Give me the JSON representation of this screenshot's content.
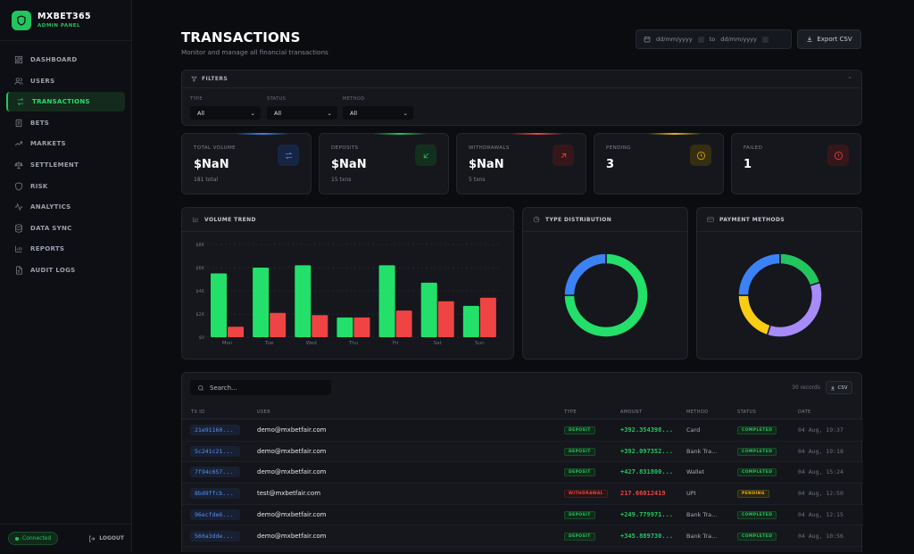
{
  "brand": {
    "name": "MXBET365",
    "subtitle": "ADMIN PANEL"
  },
  "nav": [
    {
      "label": "DASHBOARD",
      "icon": "grid-icon"
    },
    {
      "label": "USERS",
      "icon": "users-icon"
    },
    {
      "label": "TRANSACTIONS",
      "icon": "arrows-icon",
      "active": true
    },
    {
      "label": "BETS",
      "icon": "receipt-icon"
    },
    {
      "label": "MARKETS",
      "icon": "trend-icon"
    },
    {
      "label": "SETTLEMENT",
      "icon": "scale-icon"
    },
    {
      "label": "RISK",
      "icon": "shield-icon"
    },
    {
      "label": "ANALYTICS",
      "icon": "activity-icon"
    },
    {
      "label": "DATA SYNC",
      "icon": "database-icon"
    },
    {
      "label": "REPORTS",
      "icon": "bar-chart-icon"
    },
    {
      "label": "AUDIT LOGS",
      "icon": "file-icon"
    }
  ],
  "footer": {
    "connected": "Connected",
    "logout": "LOGOUT"
  },
  "header": {
    "title": "TRANSACTIONS",
    "subtitle": "Monitor and manage all financial transactions",
    "date_from_placeholder": "dd/mm/yyyy",
    "date_to_label": "to",
    "date_to_placeholder": "dd/mm/yyyy",
    "export_label": "Export CSV"
  },
  "filters": {
    "title": "FILTERS",
    "groups": [
      {
        "label": "TYPE",
        "value": "All"
      },
      {
        "label": "STATUS",
        "value": "All"
      },
      {
        "label": "METHOD",
        "value": "All"
      }
    ]
  },
  "stats": [
    {
      "label": "TOTAL VOLUME",
      "value": "$NaN",
      "sub": "181 total",
      "color": "#3b82f6",
      "icon": "swap-icon"
    },
    {
      "label": "DEPOSITS",
      "value": "$NaN",
      "sub": "15 txns",
      "color": "#22c55e",
      "icon": "arrow-down-left-icon"
    },
    {
      "label": "WITHDRAWALS",
      "value": "$NaN",
      "sub": "5 txns",
      "color": "#ef4444",
      "icon": "arrow-up-right-icon"
    },
    {
      "label": "PENDING",
      "value": "3",
      "sub": "",
      "color": "#eab308",
      "icon": "clock-icon"
    },
    {
      "label": "FAILED",
      "value": "1",
      "sub": "",
      "color": "#ef4444",
      "icon": "alert-circle-icon"
    }
  ],
  "volume_panel_title": "VOLUME TREND",
  "type_panel_title": "TYPE DISTRIBUTION",
  "payment_panel_title": "PAYMENT METHODS",
  "chart_data": [
    {
      "type": "bar",
      "title": "VOLUME TREND",
      "categories": [
        "Mon",
        "Tue",
        "Wed",
        "Thu",
        "Fri",
        "Sat",
        "Sun"
      ],
      "y_ticks": [
        "$0",
        "$2K",
        "$4K",
        "$6K",
        "$8K"
      ],
      "ylim": [
        0,
        8000
      ],
      "series": [
        {
          "color": "#22e06a",
          "values": [
            5500,
            6000,
            6200,
            1700,
            6200,
            4700,
            2700
          ]
        },
        {
          "color": "#ef4444",
          "values": [
            900,
            2100,
            1900,
            1700,
            2300,
            3100,
            3400
          ]
        }
      ]
    },
    {
      "type": "pie",
      "title": "TYPE DISTRIBUTION",
      "values": [
        75,
        25
      ],
      "colors": [
        "#22e06a",
        "#3b82f6"
      ]
    },
    {
      "type": "pie",
      "title": "PAYMENT METHODS",
      "values": [
        20,
        35,
        20,
        25
      ],
      "colors": [
        "#22c55e",
        "#a78bfa",
        "#facc15",
        "#3b82f6"
      ]
    }
  ],
  "table": {
    "search_placeholder": "Search...",
    "records": "30 records",
    "csv_label": "CSV",
    "headers": [
      "TX ID",
      "USER",
      "TYPE",
      "AMOUNT",
      "METHOD",
      "STATUS",
      "DATE"
    ],
    "rows": [
      {
        "id": "21e91160...",
        "user": "demo@mxbetfair.com",
        "type": "DEPOSIT",
        "amount": "+392.354398...",
        "method": "Card",
        "status": "COMPLETED",
        "date": "04 Aug, 19:37"
      },
      {
        "id": "5c241c21...",
        "user": "demo@mxbetfair.com",
        "type": "DEPOSIT",
        "amount": "+392.097352...",
        "method": "Bank Tra...",
        "status": "COMPLETED",
        "date": "04 Aug, 19:18"
      },
      {
        "id": "7f94c657...",
        "user": "demo@mxbetfair.com",
        "type": "DEPOSIT",
        "amount": "+427.831800...",
        "method": "Wallet",
        "status": "COMPLETED",
        "date": "04 Aug, 15:24"
      },
      {
        "id": "8bd9ffcb...",
        "user": "test@mxbetfair.com",
        "type": "WITHDRAWAL",
        "amount": "217.66012419",
        "method": "UPI",
        "status": "PENDING",
        "date": "04 Aug, 12:50"
      },
      {
        "id": "96ecfde6...",
        "user": "demo@mxbetfair.com",
        "type": "DEPOSIT",
        "amount": "+249.779971...",
        "method": "Bank Tra...",
        "status": "COMPLETED",
        "date": "04 Aug, 12:15"
      },
      {
        "id": "560a3dde...",
        "user": "demo@mxbetfair.com",
        "type": "DEPOSIT",
        "amount": "+345.889730...",
        "method": "Bank Tra...",
        "status": "COMPLETED",
        "date": "04 Aug, 10:56"
      }
    ]
  }
}
